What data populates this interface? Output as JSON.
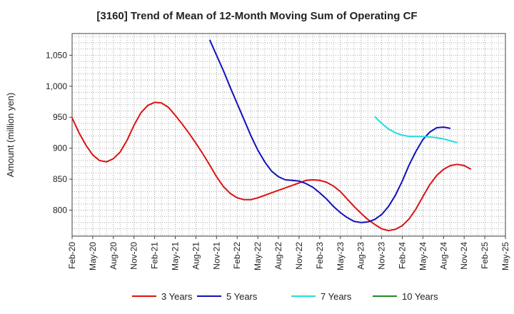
{
  "chart_data": {
    "type": "line",
    "title": "[3160]  Trend of Mean of 12-Month Moving Sum of Operating CF",
    "xlabel": "",
    "ylabel": "Amount (million yen)",
    "ylim": [
      758,
      1085
    ],
    "yticks": [
      800,
      850,
      900,
      950,
      1000,
      1050
    ],
    "ytick_labels": [
      "800",
      "850",
      "900",
      "950",
      "1,000",
      "1,050"
    ],
    "xlim": [
      0,
      63
    ],
    "xticks": [
      0,
      3,
      6,
      9,
      12,
      15,
      18,
      21,
      24,
      27,
      30,
      33,
      36,
      39,
      42,
      45,
      48,
      51,
      54,
      57,
      60,
      63
    ],
    "xtick_labels": [
      "Feb-20",
      "May-20",
      "Aug-20",
      "Nov-20",
      "Feb-21",
      "May-21",
      "Aug-21",
      "Nov-21",
      "Feb-22",
      "May-22",
      "Aug-22",
      "Nov-22",
      "Feb-23",
      "May-23",
      "Aug-23",
      "Nov-23",
      "Feb-24",
      "May-24",
      "Aug-24",
      "Nov-24",
      "Feb-25",
      "May-25"
    ],
    "grid": true,
    "legend_position": "bottom",
    "series": [
      {
        "name": "3 Years",
        "color": "#dd1111",
        "x_start": 0,
        "values": [
          949,
          925,
          905,
          889,
          880,
          878,
          883,
          894,
          913,
          937,
          957,
          969,
          974,
          973,
          966,
          953,
          939,
          924,
          908,
          891,
          873,
          854,
          838,
          827,
          820,
          817,
          817,
          820,
          824,
          828,
          832,
          836,
          840,
          844,
          848,
          849,
          848,
          845,
          839,
          830,
          818,
          806,
          795,
          785,
          777,
          770,
          767,
          769,
          775,
          786,
          802,
          822,
          841,
          856,
          866,
          872,
          874,
          872,
          866
        ]
      },
      {
        "name": "5 Years",
        "color": "#1111bb",
        "x_start": 20,
        "values": [
          1075,
          1050,
          1025,
          998,
          972,
          946,
          920,
          897,
          878,
          863,
          854,
          849,
          848,
          847,
          843,
          837,
          828,
          818,
          806,
          796,
          788,
          782,
          780,
          781,
          785,
          793,
          806,
          824,
          847,
          873,
          895,
          914,
          926,
          933,
          934,
          932
        ]
      },
      {
        "name": "7 Years",
        "color": "#22dddd",
        "x_start": 44,
        "values": [
          951,
          940,
          931,
          925,
          921,
          919,
          919,
          919,
          918,
          917,
          915,
          912,
          909
        ]
      },
      {
        "name": "10 Years",
        "color": "#228822",
        "x_start": 0,
        "values": []
      }
    ]
  }
}
